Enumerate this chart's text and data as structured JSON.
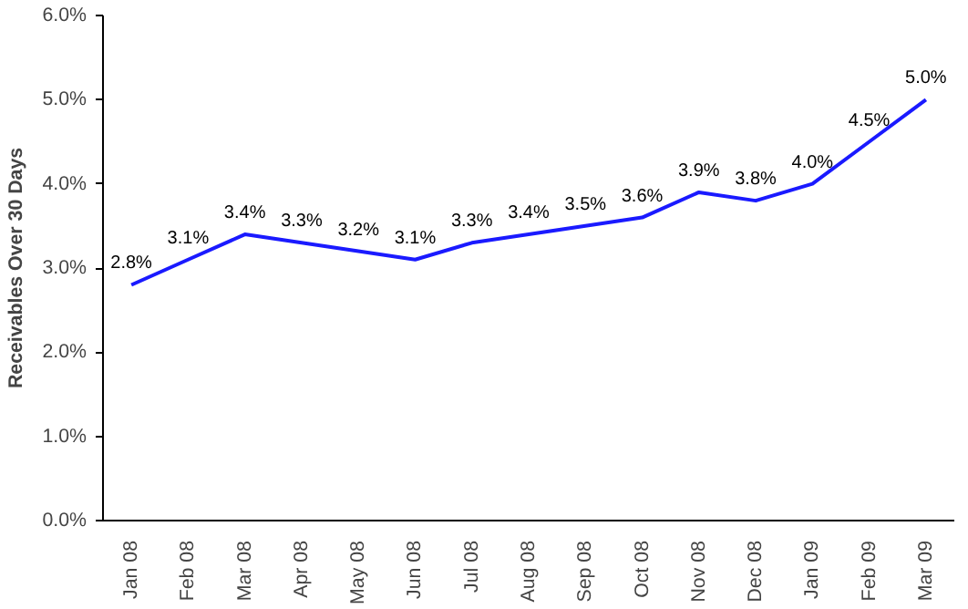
{
  "chart_data": {
    "type": "line",
    "ylabel": "Receivables Over 30 Days",
    "categories": [
      "Jan 08",
      "Feb 08",
      "Mar 08",
      "Apr 08",
      "May 08",
      "Jun 08",
      "Jul 08",
      "Aug 08",
      "Sep 08",
      "Oct 08",
      "Nov 08",
      "Dec 08",
      "Jan 09",
      "Feb 09",
      "Mar 09"
    ],
    "series": [
      {
        "color": "#1a1aff",
        "values": [
          2.8,
          3.1,
          3.4,
          3.3,
          3.2,
          3.1,
          3.3,
          3.4,
          3.5,
          3.6,
          3.9,
          3.8,
          4.0,
          4.5,
          5.0
        ],
        "value_labels": [
          "2.8%",
          "3.1%",
          "3.4%",
          "3.3%",
          "3.2%",
          "3.1%",
          "3.3%",
          "3.4%",
          "3.5%",
          "3.6%",
          "3.9%",
          "3.8%",
          "4.0%",
          "4.5%",
          "5.0%"
        ]
      }
    ],
    "ylim": [
      0,
      6
    ],
    "yticks": [
      {
        "value": 0,
        "label": "0.0%"
      },
      {
        "value": 1,
        "label": "1.0%"
      },
      {
        "value": 2,
        "label": "2.0%"
      },
      {
        "value": 3,
        "label": "3.0%"
      },
      {
        "value": 4,
        "label": "4.0%"
      },
      {
        "value": 5,
        "label": "5.0%"
      },
      {
        "value": 6,
        "label": "6.0%"
      }
    ],
    "grid": false,
    "marker": "none",
    "line_style": "solid"
  }
}
